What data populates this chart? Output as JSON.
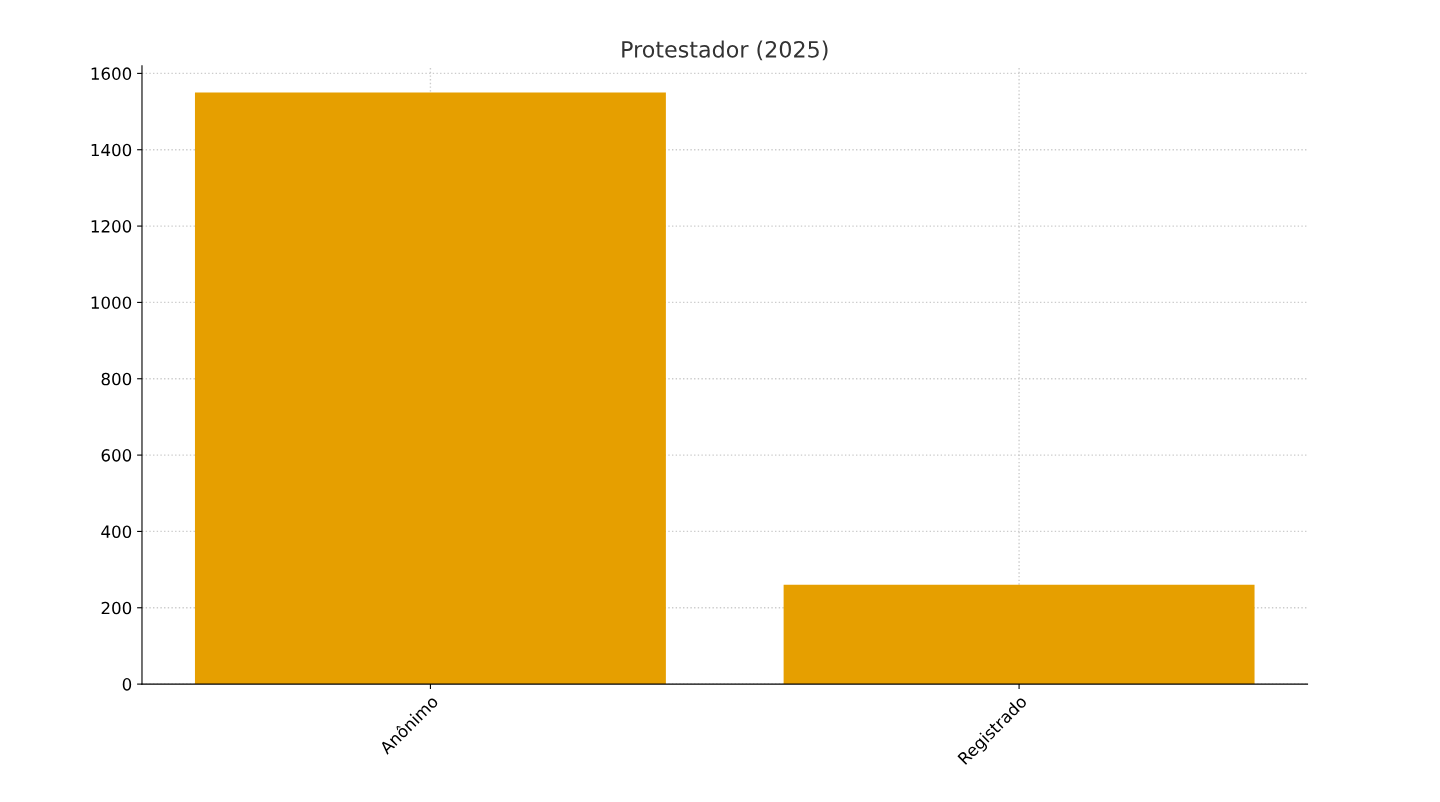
{
  "chart_data": {
    "type": "bar",
    "title": "Protestador (2025)",
    "categories": [
      "Anônimo",
      "Registrado"
    ],
    "values": [
      1550,
      260
    ],
    "color": "#e69f00",
    "ylim": [
      0,
      1620
    ],
    "yticks": [
      0,
      200,
      400,
      600,
      800,
      1000,
      1200,
      1400,
      1600
    ],
    "grid": true
  }
}
